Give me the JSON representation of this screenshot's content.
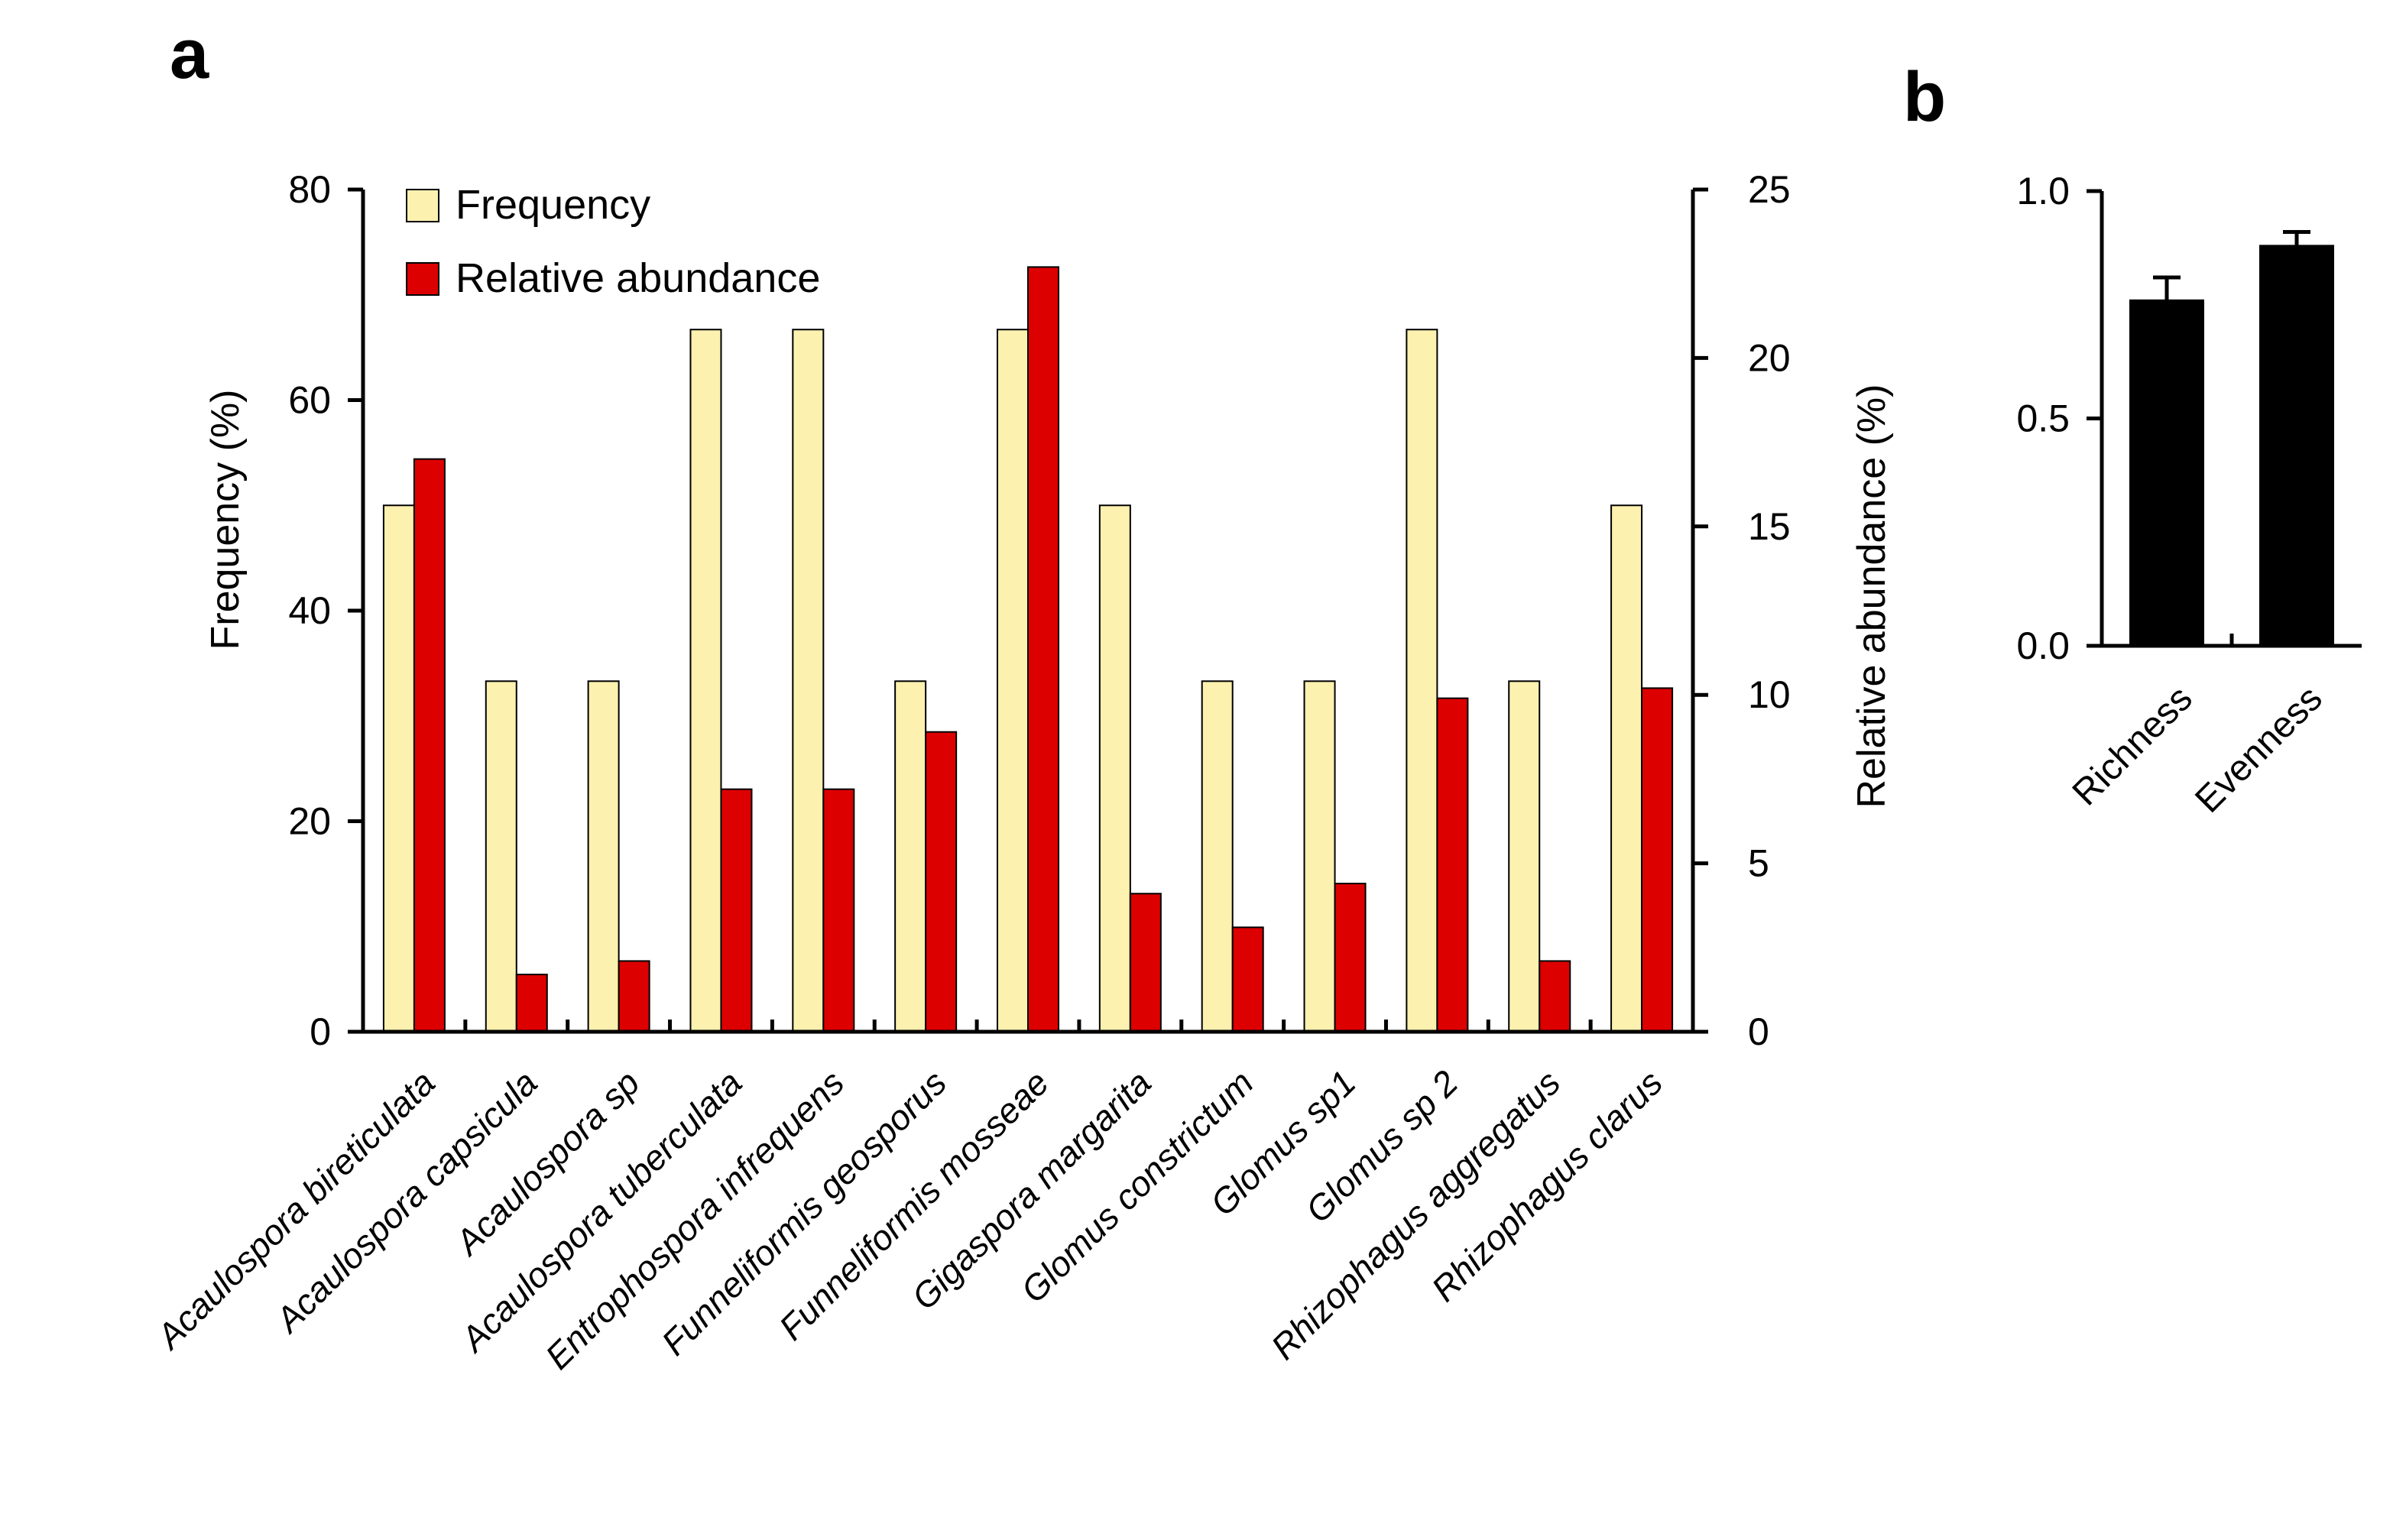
{
  "chart_data": [
    {
      "panel": "a",
      "type": "bar",
      "categories": [
        "Acaulospora bireticulata",
        "Acaulospora capsicula",
        "Acaulospora sp",
        "Acaulospora tuberculata",
        "Entrophospora infrequens",
        "Funneliformis geosporus",
        "Funneliformis mosseae",
        "Gigaspora margarita",
        "Glomus constrictum",
        "Glomus sp1",
        "Glomus sp 2",
        "Rhizophagus aggregatus",
        "Rhizophagus clarus"
      ],
      "series": [
        {
          "name": "Frequency",
          "axis": "left",
          "color": "#fdf1b0",
          "values": [
            50,
            33.3,
            33.3,
            66.7,
            66.7,
            33.3,
            66.7,
            50,
            33.3,
            33.3,
            66.7,
            33.3,
            50
          ]
        },
        {
          "name": "Relative abundance",
          "axis": "right",
          "color": "#dd0000",
          "values": [
            17.0,
            1.7,
            2.1,
            7.2,
            7.2,
            8.9,
            22.7,
            4.1,
            3.1,
            4.4,
            9.9,
            2.1,
            10.2
          ]
        }
      ],
      "ylabel_left": "Frequency (%)",
      "ylabel_right": "Relative abundance (%)",
      "ylim_left": [
        0,
        80
      ],
      "ylim_right": [
        0,
        25
      ],
      "yticks_left": [
        "0",
        "20",
        "40",
        "60",
        "80"
      ],
      "yticks_right": [
        "0",
        "5",
        "10",
        "15",
        "20",
        "25"
      ],
      "legend_position": "top-left",
      "grid": false
    },
    {
      "panel": "b",
      "type": "bar",
      "categories": [
        "Richness",
        "Evenness"
      ],
      "values": [
        0.76,
        0.88
      ],
      "errors": [
        0.05,
        0.03
      ],
      "color": "#000000",
      "ylim": [
        0,
        1.0
      ],
      "yticks": [
        "0.0",
        "0.5",
        "1.0"
      ],
      "grid": false
    }
  ]
}
